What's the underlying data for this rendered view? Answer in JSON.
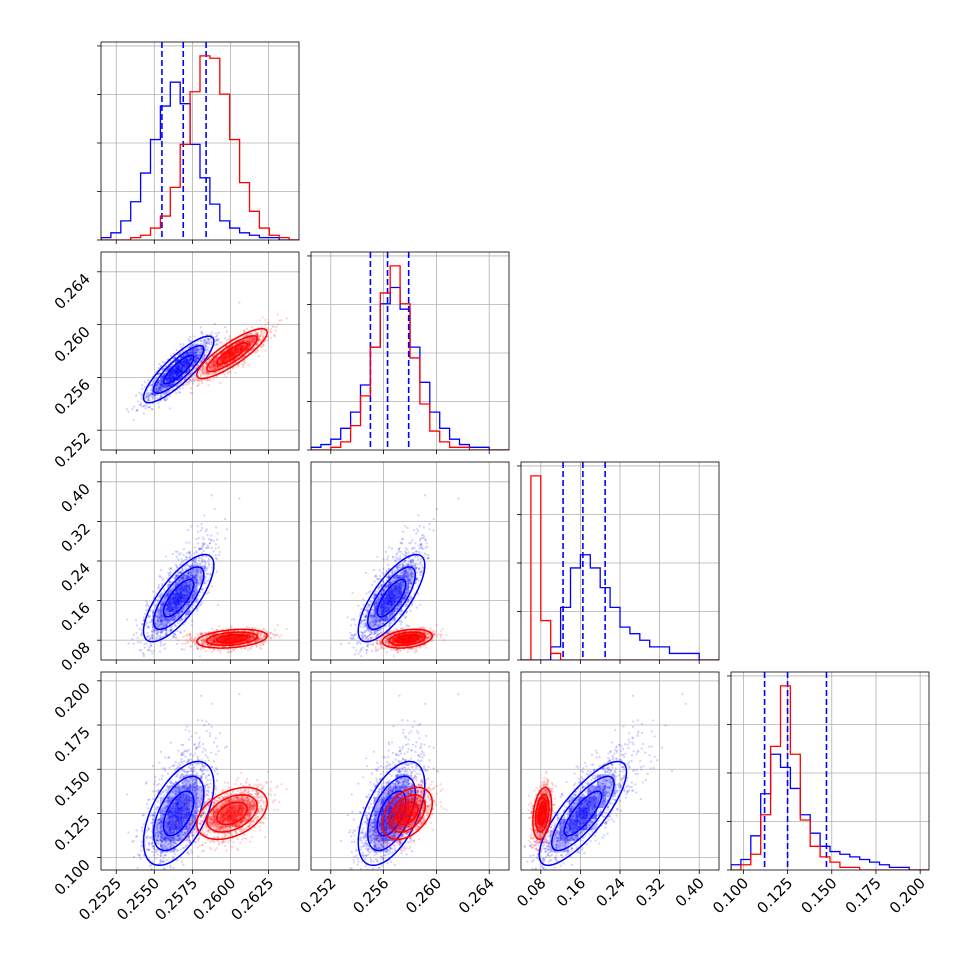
{
  "chart_data": {
    "type": "corner",
    "grid": true,
    "parameters": [
      {
        "id": "p0",
        "range": [
          0.2515,
          0.2645
        ],
        "ticks": [
          0.2525,
          0.255,
          0.2575,
          0.26,
          0.2625
        ],
        "tick_labels": [
          "0.2525",
          "0.2550",
          "0.2575",
          "0.2600",
          "0.2625"
        ]
      },
      {
        "id": "p1",
        "range": [
          0.2505,
          0.2655
        ],
        "ticks": [
          0.252,
          0.256,
          0.26,
          0.264
        ],
        "tick_labels": [
          "0.252",
          "0.256",
          "0.260",
          "0.264"
        ]
      },
      {
        "id": "p2",
        "range": [
          0.04,
          0.44
        ],
        "ticks": [
          0.08,
          0.16,
          0.24,
          0.32,
          0.4
        ],
        "tick_labels": [
          "0.08",
          "0.16",
          "0.24",
          "0.32",
          "0.40"
        ]
      },
      {
        "id": "p3",
        "range": [
          0.093,
          0.205
        ],
        "ticks": [
          0.1,
          0.125,
          0.15,
          0.175,
          0.2
        ],
        "tick_labels": [
          "0.100",
          "0.125",
          "0.150",
          "0.175",
          "0.200"
        ]
      }
    ],
    "series": [
      {
        "name": "blue",
        "color": "#0000ff",
        "means": [
          0.2566,
          0.2566,
          0.165,
          0.125
        ],
        "stds": [
          0.0011,
          0.0012,
          0.042,
          0.014
        ],
        "correlation": [
          [
            1,
            0.85,
            0.75,
            0.55
          ],
          [
            0.85,
            1,
            0.75,
            0.55
          ],
          [
            0.75,
            0.75,
            1,
            0.8
          ],
          [
            0.55,
            0.55,
            0.8,
            1
          ]
        ],
        "quantiles": [
          [
            0.2555,
            0.2569,
            0.2584
          ],
          [
            0.255,
            0.2563,
            0.2579
          ],
          [
            0.125,
            0.165,
            0.21
          ],
          [
            0.112,
            0.125,
            0.147
          ]
        ],
        "hist": [
          [
            1,
            3,
            8,
            16,
            28,
            42,
            56,
            66,
            57,
            40,
            26,
            15,
            8,
            5,
            3,
            2,
            1,
            1,
            0,
            0
          ],
          [
            1,
            2,
            4,
            8,
            14,
            24,
            38,
            54,
            60,
            52,
            38,
            25,
            14,
            8,
            4,
            2,
            1,
            1,
            0,
            0
          ],
          [
            0,
            0,
            0,
            2,
            8,
            14,
            16,
            14,
            11,
            8,
            5,
            4,
            3,
            2,
            2,
            1,
            1,
            1,
            0,
            0
          ],
          [
            2,
            4,
            13,
            29,
            44,
            39,
            31,
            21,
            14,
            9,
            7,
            6,
            5,
            4,
            3,
            2,
            1,
            1,
            0,
            0
          ]
        ]
      },
      {
        "name": "red",
        "color": "#ff0000",
        "means": [
          0.2601,
          0.2578,
          0.083,
          0.125
        ],
        "stds": [
          0.0011,
          0.0009,
          0.009,
          0.007
        ],
        "correlation": [
          [
            1,
            0.85,
            0.3,
            0.4
          ],
          [
            0.85,
            1,
            0.3,
            0.4
          ],
          [
            0.3,
            0.3,
            1,
            0.3
          ],
          [
            0.4,
            0.4,
            0.3,
            1
          ]
        ],
        "quantiles": [],
        "hist": [
          [
            0,
            0,
            0,
            1,
            2,
            5,
            10,
            22,
            40,
            62,
            77,
            76,
            61,
            42,
            24,
            12,
            5,
            2,
            1,
            0
          ],
          [
            0,
            0,
            1,
            3,
            9,
            20,
            38,
            58,
            68,
            54,
            34,
            17,
            7,
            3,
            1,
            1,
            0,
            0,
            0,
            0
          ],
          [
            0,
            28,
            6,
            1,
            0,
            0,
            0,
            0,
            0,
            0,
            0,
            0,
            0,
            0,
            0,
            0,
            0,
            0,
            0,
            0
          ],
          [
            0,
            2,
            6,
            21,
            47,
            70,
            44,
            19,
            9,
            5,
            3,
            1,
            1,
            0,
            0,
            0,
            0,
            0,
            0,
            0
          ]
        ]
      }
    ]
  }
}
